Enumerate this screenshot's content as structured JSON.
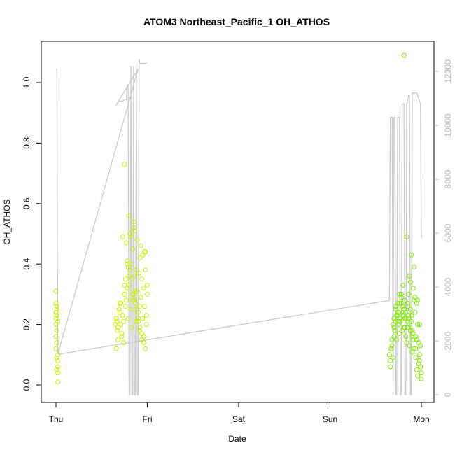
{
  "chart_data": {
    "type": "scatter",
    "title": "ATOM3 Northeast_Pacific_1 OH_ATHOS",
    "xlabel": "Date",
    "ylabel": "OH_ATHOS",
    "x_ticks": [
      "Thu",
      "Fri",
      "Sat",
      "Sun",
      "Mon"
    ],
    "x_tick_values": [
      0,
      1,
      2,
      3,
      4
    ],
    "xlim": [
      -0.2,
      4.12
    ],
    "ylim": [
      -0.06,
      1.11
    ],
    "y_ticks": [
      0.0,
      0.2,
      0.4,
      0.6,
      0.8,
      1.0
    ],
    "y_tick_labels": [
      "0.0",
      "0.2",
      "0.4",
      "0.6",
      "0.8",
      "1.0"
    ],
    "y2_ticks": [
      0,
      2000,
      4000,
      6000,
      8000,
      10000,
      12000
    ],
    "y2_tick_labels": [
      "0",
      "2000",
      "4000",
      "6000",
      "8000",
      "10000",
      "12000"
    ],
    "y2lim": [
      -300,
      12900
    ],
    "grid": false,
    "colors": {
      "points_early": "#c8f000",
      "points_late": "#80e800",
      "line": "#c8c8c8"
    },
    "series": [
      {
        "kind": "points",
        "x": [
          0.0,
          0.0,
          0.01,
          0.01,
          0.0,
          0.01,
          0.0,
          0.02,
          0.0,
          0.01,
          0.0,
          0.01,
          0.0,
          0.02,
          0.01,
          0.02,
          0.02,
          0.01,
          0.02,
          0.02,
          0.65,
          0.66,
          0.67,
          0.68,
          0.69,
          0.7,
          0.71,
          0.72,
          0.73,
          0.74,
          0.75,
          0.76,
          0.77,
          0.78,
          0.79,
          0.8,
          0.81,
          0.82,
          0.83,
          0.84,
          0.85,
          0.86,
          0.87,
          0.88,
          0.89,
          0.9,
          0.91,
          0.92,
          0.93,
          0.94,
          0.95,
          0.96,
          0.97,
          0.98,
          0.99,
          1.0,
          0.66,
          0.68,
          0.7,
          0.72,
          0.74,
          0.76,
          0.78,
          0.8,
          0.82,
          0.84,
          0.86,
          0.88,
          0.9,
          0.92,
          0.94,
          0.96,
          0.98,
          1.0,
          0.67,
          0.71,
          0.75,
          0.79,
          0.83,
          0.87,
          0.91,
          0.95,
          0.99,
          0.73,
          0.77,
          0.81,
          0.85,
          0.89,
          0.93,
          0.97,
          0.75,
          0.8,
          0.85,
          0.78,
          0.82,
          0.88,
          0.92,
          0.96,
          0.84,
          0.9,
          0.94,
          0.98,
          0.86
        ],
        "y": [
          0.31,
          0.27,
          0.26,
          0.25,
          0.24,
          0.23,
          0.22,
          0.21,
          0.2,
          0.18,
          0.16,
          0.14,
          0.12,
          0.1,
          0.09,
          0.08,
          0.06,
          0.05,
          0.04,
          0.01,
          0.2,
          0.22,
          0.18,
          0.15,
          0.25,
          0.27,
          0.2,
          0.17,
          0.23,
          0.14,
          0.3,
          0.35,
          0.28,
          0.4,
          0.22,
          0.33,
          0.38,
          0.25,
          0.19,
          0.45,
          0.3,
          0.36,
          0.27,
          0.21,
          0.31,
          0.24,
          0.18,
          0.42,
          0.29,
          0.35,
          0.22,
          0.16,
          0.26,
          0.38,
          0.2,
          0.33,
          0.12,
          0.19,
          0.24,
          0.16,
          0.21,
          0.26,
          0.32,
          0.36,
          0.4,
          0.3,
          0.28,
          0.25,
          0.22,
          0.19,
          0.17,
          0.14,
          0.12,
          0.3,
          0.21,
          0.27,
          0.33,
          0.39,
          0.35,
          0.31,
          0.37,
          0.43,
          0.23,
          0.49,
          0.47,
          0.5,
          0.52,
          0.48,
          0.46,
          0.44,
          0.73,
          0.56,
          0.54,
          0.41,
          0.49,
          0.38,
          0.26,
          0.32,
          0.28,
          0.21,
          0.15,
          0.44,
          0.51
        ],
        "color": "#c8f000"
      },
      {
        "kind": "points",
        "x": [
          3.65,
          3.66,
          3.67,
          3.68,
          3.69,
          3.7,
          3.71,
          3.72,
          3.73,
          3.74,
          3.75,
          3.76,
          3.77,
          3.78,
          3.79,
          3.8,
          3.81,
          3.82,
          3.83,
          3.84,
          3.85,
          3.86,
          3.87,
          3.88,
          3.89,
          3.9,
          3.91,
          3.92,
          3.93,
          3.94,
          3.95,
          3.96,
          3.97,
          3.98,
          3.99,
          4.0,
          3.66,
          3.68,
          3.7,
          3.72,
          3.74,
          3.76,
          3.78,
          3.8,
          3.82,
          3.84,
          3.86,
          3.88,
          3.9,
          3.92,
          3.94,
          3.96,
          3.98,
          4.0,
          3.67,
          3.71,
          3.75,
          3.79,
          3.83,
          3.87,
          3.91,
          3.95,
          3.99,
          3.69,
          3.73,
          3.77,
          3.81,
          3.85,
          3.89,
          3.93,
          3.97,
          3.7,
          3.74,
          3.78,
          3.82,
          3.86,
          3.9,
          3.94,
          3.98,
          3.72,
          3.76,
          3.8,
          3.84,
          3.88,
          3.92,
          3.96,
          3.75,
          3.79,
          3.83,
          3.87,
          3.91,
          3.95,
          3.85,
          3.81,
          3.89
        ],
        "y": [
          0.1,
          0.08,
          0.12,
          0.15,
          0.2,
          0.22,
          0.18,
          0.25,
          0.23,
          0.27,
          0.2,
          0.17,
          0.22,
          0.3,
          0.26,
          0.24,
          0.19,
          0.28,
          0.16,
          0.21,
          0.26,
          0.23,
          0.13,
          0.18,
          0.21,
          0.11,
          0.15,
          0.28,
          0.24,
          0.09,
          0.05,
          0.03,
          0.07,
          0.2,
          0.13,
          0.04,
          0.06,
          0.13,
          0.16,
          0.21,
          0.24,
          0.27,
          0.29,
          0.23,
          0.19,
          0.14,
          0.22,
          0.25,
          0.18,
          0.12,
          0.16,
          0.2,
          0.1,
          0.02,
          0.12,
          0.18,
          0.24,
          0.26,
          0.22,
          0.2,
          0.17,
          0.27,
          0.06,
          0.09,
          0.15,
          0.21,
          0.25,
          0.19,
          0.23,
          0.29,
          0.14,
          0.19,
          0.23,
          0.27,
          0.22,
          0.3,
          0.16,
          0.12,
          0.08,
          0.26,
          0.3,
          0.33,
          0.49,
          0.34,
          0.39,
          0.28,
          0.21,
          0.18,
          0.24,
          0.36,
          0.32,
          0.15,
          0.27,
          1.09,
          0.43
        ],
        "color": "#80e800"
      },
      {
        "kind": "line",
        "axis": "right",
        "x": [
          0.0,
          0.01,
          0.02,
          0.02,
          0.9,
          0.65,
          0.69,
          0.73,
          0.75,
          0.77,
          0.78,
          0.79,
          0.8,
          0.81,
          0.82,
          0.83,
          0.84,
          0.85,
          0.86,
          0.87,
          0.88,
          0.89,
          0.9,
          0.91,
          0.92,
          0.93,
          0.94,
          0.95,
          0.96,
          0.97,
          0.98,
          0.99,
          1.0
        ],
        "y": [
          12100,
          12100,
          1500,
          1500,
          12100,
          10700,
          10900,
          10900,
          10950,
          10950,
          11500,
          11500,
          0,
          0,
          12200,
          0,
          0,
          12200,
          0,
          0,
          12300,
          0,
          0,
          12450,
          12300,
          12300,
          12300,
          12300,
          12300,
          12300,
          12300,
          12300,
          12300
        ],
        "note": ""
      },
      {
        "kind": "line",
        "axis": "right",
        "x": [
          0.02,
          3.65,
          3.66,
          3.67,
          3.68,
          3.69,
          3.7,
          3.71,
          3.72,
          3.73,
          3.74,
          3.75,
          3.76,
          3.77,
          3.78,
          3.79,
          3.8,
          3.81,
          3.82,
          3.83,
          3.84,
          3.85,
          3.86,
          3.87,
          3.88,
          3.89,
          3.9,
          3.91,
          3.92,
          3.93,
          3.94,
          3.95,
          3.96,
          3.97,
          3.98,
          3.99,
          4.0
        ],
        "y": [
          1500,
          3500,
          10300,
          10300,
          10300,
          0,
          10300,
          10300,
          0,
          0,
          10300,
          10300,
          10300,
          0,
          0,
          10800,
          10800,
          10800,
          0,
          0,
          10800,
          10900,
          11100,
          11100,
          0,
          0,
          11200,
          11200,
          11200,
          11200,
          11200,
          11200,
          11100,
          11000,
          10900,
          10800,
          5800
        ],
        "note": ""
      }
    ]
  }
}
